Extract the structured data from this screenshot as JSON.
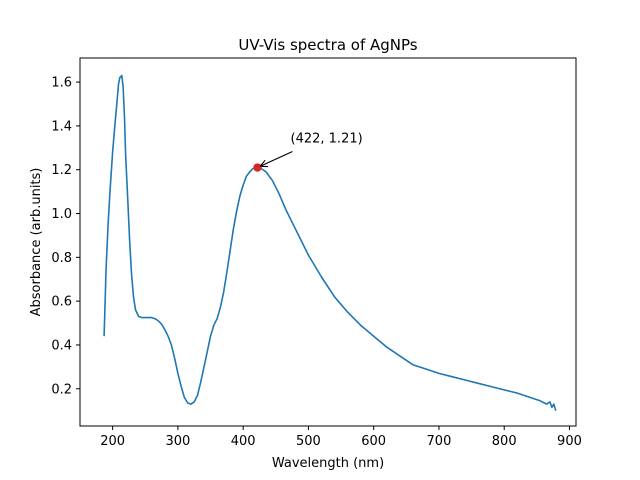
{
  "chart_data": {
    "type": "line",
    "title": "UV-Vis spectra of AgNPs",
    "xlabel": "Wavelength (nm)",
    "ylabel": "Absorbance (arb.units)",
    "xlim": [
      150,
      910
    ],
    "ylim": [
      0.03,
      1.71
    ],
    "grid": false,
    "x_ticks": [
      200,
      300,
      400,
      500,
      600,
      700,
      800,
      900
    ],
    "y_ticks": [
      0.2,
      0.4,
      0.6,
      0.8,
      1.0,
      1.2,
      1.4,
      1.6
    ],
    "series": [
      {
        "color": "#1f77b4",
        "points": [
          [
            187,
            0.44
          ],
          [
            190,
            0.75
          ],
          [
            193,
            0.95
          ],
          [
            196,
            1.1
          ],
          [
            200,
            1.28
          ],
          [
            204,
            1.42
          ],
          [
            207,
            1.52
          ],
          [
            209,
            1.59
          ],
          [
            211,
            1.62
          ],
          [
            214,
            1.63
          ],
          [
            216,
            1.58
          ],
          [
            218,
            1.45
          ],
          [
            220,
            1.26
          ],
          [
            223,
            1.08
          ],
          [
            226,
            0.88
          ],
          [
            229,
            0.72
          ],
          [
            232,
            0.62
          ],
          [
            235,
            0.56
          ],
          [
            240,
            0.53
          ],
          [
            245,
            0.525
          ],
          [
            250,
            0.525
          ],
          [
            255,
            0.525
          ],
          [
            260,
            0.525
          ],
          [
            265,
            0.52
          ],
          [
            270,
            0.51
          ],
          [
            275,
            0.495
          ],
          [
            280,
            0.47
          ],
          [
            285,
            0.44
          ],
          [
            290,
            0.4
          ],
          [
            295,
            0.34
          ],
          [
            300,
            0.27
          ],
          [
            305,
            0.21
          ],
          [
            310,
            0.16
          ],
          [
            315,
            0.135
          ],
          [
            320,
            0.13
          ],
          [
            325,
            0.14
          ],
          [
            330,
            0.17
          ],
          [
            335,
            0.23
          ],
          [
            340,
            0.3
          ],
          [
            345,
            0.37
          ],
          [
            350,
            0.44
          ],
          [
            355,
            0.49
          ],
          [
            360,
            0.52
          ],
          [
            365,
            0.57
          ],
          [
            370,
            0.64
          ],
          [
            375,
            0.73
          ],
          [
            380,
            0.83
          ],
          [
            385,
            0.93
          ],
          [
            390,
            1.01
          ],
          [
            395,
            1.08
          ],
          [
            400,
            1.13
          ],
          [
            405,
            1.17
          ],
          [
            410,
            1.19
          ],
          [
            415,
            1.205
          ],
          [
            422,
            1.21
          ],
          [
            428,
            1.205
          ],
          [
            435,
            1.19
          ],
          [
            445,
            1.15
          ],
          [
            455,
            1.09
          ],
          [
            465,
            1.02
          ],
          [
            475,
            0.96
          ],
          [
            485,
            0.9
          ],
          [
            500,
            0.81
          ],
          [
            520,
            0.71
          ],
          [
            540,
            0.62
          ],
          [
            560,
            0.55
          ],
          [
            580,
            0.49
          ],
          [
            600,
            0.44
          ],
          [
            620,
            0.39
          ],
          [
            640,
            0.35
          ],
          [
            660,
            0.31
          ],
          [
            680,
            0.29
          ],
          [
            700,
            0.27
          ],
          [
            720,
            0.255
          ],
          [
            740,
            0.24
          ],
          [
            760,
            0.225
          ],
          [
            780,
            0.21
          ],
          [
            800,
            0.195
          ],
          [
            820,
            0.18
          ],
          [
            840,
            0.16
          ],
          [
            855,
            0.145
          ],
          [
            865,
            0.13
          ],
          [
            870,
            0.14
          ],
          [
            873,
            0.115
          ],
          [
            876,
            0.13
          ],
          [
            879,
            0.1
          ]
        ]
      }
    ],
    "highlight": {
      "x": 422,
      "y": 1.21,
      "color": "#d62728",
      "label": "(422, 1.21)"
    },
    "colors": {
      "line": "#1f77b4",
      "marker": "#d62728",
      "axes": "#000000"
    }
  }
}
